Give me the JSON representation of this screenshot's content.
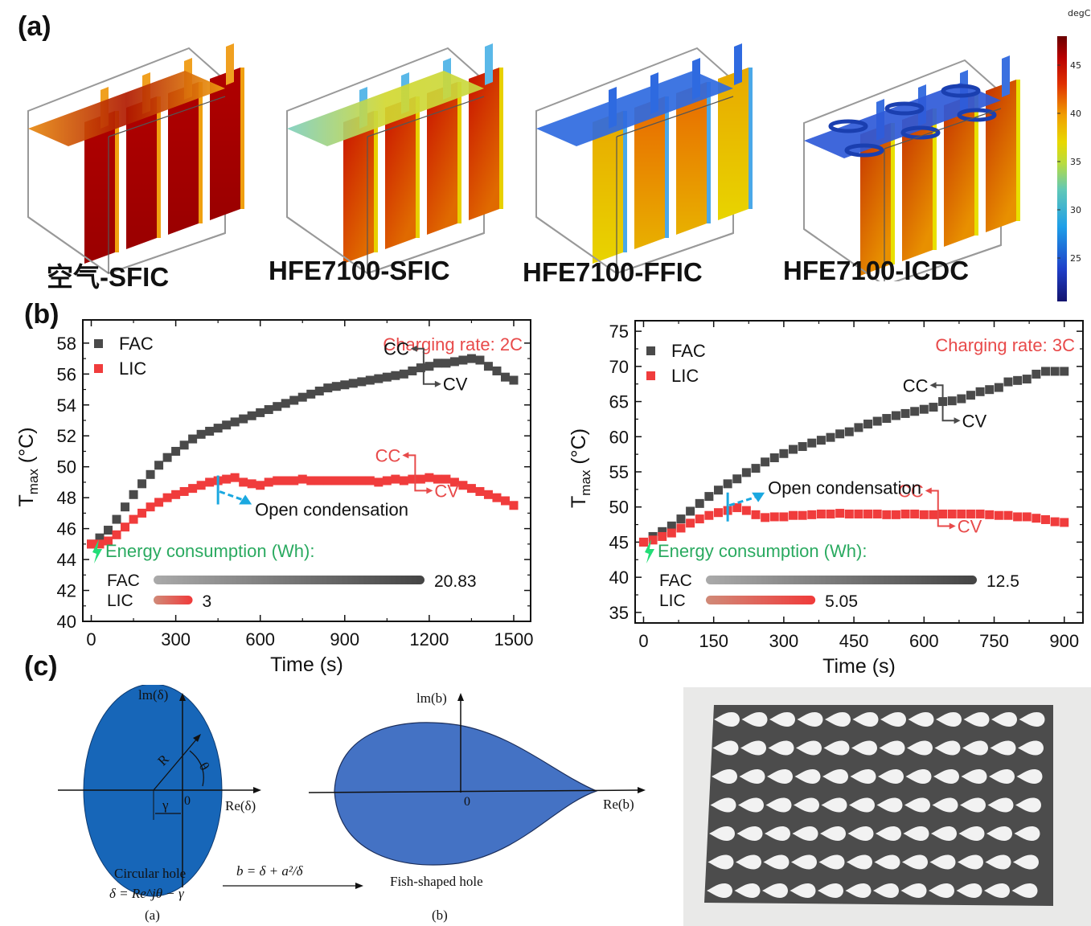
{
  "panels": {
    "a": {
      "label": "(a)",
      "renders": [
        {
          "caption": "空气-SFIC",
          "scheme": "hot"
        },
        {
          "caption": "HFE7100-SFIC",
          "scheme": "mixed"
        },
        {
          "caption": "HFE7100-FFIC",
          "scheme": "cool"
        },
        {
          "caption": "HFE7100-ICDC",
          "scheme": "coil"
        }
      ],
      "colorbar": {
        "unit": "degC",
        "ticks": [
          "45",
          "40",
          "35",
          "30",
          "25"
        ],
        "range": [
          20.5,
          48
        ]
      }
    },
    "b": {
      "label": "(b)"
    },
    "c": {
      "label": "(c)",
      "diagram": {
        "left_axis_y": "lm(δ)",
        "left_axis_x": "Re(δ)",
        "left_R": "R",
        "left_theta": "θ",
        "left_gamma": "γ",
        "left_origin": "0",
        "left_title": "Circular hole",
        "left_formula": "δ = Re^jθ − γ",
        "left_sub": "(a)",
        "transform": "b = δ + a²/δ",
        "right_axis_y": "lm(b)",
        "right_axis_x": "Re(b)",
        "right_origin": "0",
        "right_title": "Fish-shaped hole",
        "right_sub": "(b)"
      },
      "photo": {
        "rows": 7,
        "cols": 12,
        "description": "perforated plate with fish-shaped holes"
      }
    }
  },
  "chart_data": [
    {
      "type": "scatter",
      "title": "Charging rate: 2C",
      "xlabel": "Time (s)",
      "ylabel": "T_max (°C)",
      "xlim": [
        -30,
        1560
      ],
      "ylim": [
        40,
        59.5
      ],
      "xticks": [
        0,
        300,
        600,
        900,
        1200,
        1500
      ],
      "yticks": [
        40,
        42,
        44,
        46,
        48,
        50,
        52,
        54,
        56,
        58
      ],
      "legend": "top-left",
      "series": [
        {
          "name": "FAC",
          "color": "#4a4a4a",
          "x": [
            0,
            30,
            60,
            90,
            120,
            150,
            180,
            210,
            240,
            270,
            300,
            330,
            360,
            390,
            420,
            450,
            480,
            510,
            540,
            570,
            600,
            630,
            660,
            690,
            720,
            750,
            780,
            810,
            840,
            870,
            900,
            930,
            960,
            990,
            1020,
            1050,
            1080,
            1110,
            1140,
            1170,
            1200,
            1230,
            1260,
            1290,
            1320,
            1350,
            1380,
            1410,
            1440,
            1470,
            1500
          ],
          "y": [
            45.0,
            45.4,
            45.9,
            46.6,
            47.4,
            48.2,
            48.9,
            49.5,
            50.1,
            50.6,
            51.0,
            51.4,
            51.8,
            52.1,
            52.3,
            52.5,
            52.7,
            52.9,
            53.1,
            53.3,
            53.5,
            53.7,
            53.9,
            54.1,
            54.3,
            54.5,
            54.7,
            54.9,
            55.1,
            55.2,
            55.3,
            55.4,
            55.5,
            55.6,
            55.7,
            55.8,
            55.9,
            56.0,
            56.2,
            56.4,
            56.5,
            56.7,
            56.7,
            56.8,
            56.9,
            57.0,
            56.9,
            56.5,
            56.2,
            55.8,
            55.6
          ]
        },
        {
          "name": "LIC",
          "color": "#f03c3c",
          "x": [
            0,
            30,
            60,
            90,
            120,
            150,
            180,
            210,
            240,
            270,
            300,
            330,
            360,
            390,
            420,
            450,
            480,
            510,
            540,
            570,
            600,
            630,
            660,
            690,
            720,
            750,
            780,
            810,
            840,
            870,
            900,
            930,
            960,
            990,
            1020,
            1050,
            1080,
            1110,
            1140,
            1170,
            1200,
            1230,
            1260,
            1290,
            1320,
            1350,
            1380,
            1410,
            1440,
            1470,
            1500
          ],
          "y": [
            45.0,
            45.0,
            45.2,
            45.6,
            46.1,
            46.6,
            47.0,
            47.4,
            47.7,
            48.0,
            48.2,
            48.4,
            48.6,
            48.8,
            49.0,
            49.1,
            49.2,
            49.3,
            49.0,
            48.9,
            48.8,
            49.0,
            49.1,
            49.1,
            49.1,
            49.2,
            49.1,
            49.1,
            49.1,
            49.1,
            49.1,
            49.1,
            49.1,
            49.1,
            49.0,
            49.1,
            49.2,
            49.1,
            49.2,
            49.2,
            49.3,
            49.2,
            49.2,
            49.0,
            48.8,
            48.6,
            48.4,
            48.2,
            48.0,
            47.8,
            47.5
          ]
        }
      ],
      "annotations": {
        "fac_cc": "CC",
        "fac_cv": "CV",
        "fac_switch_x": 1180,
        "lic_cc": "CC",
        "lic_cv": "CV",
        "lic_switch_x": 1150,
        "open_condensation": "Open condensation",
        "open_condensation_x": 450
      },
      "energy": {
        "title": "Energy consumption (Wh):",
        "max_value": 20.83,
        "bars": [
          {
            "name": "FAC",
            "value": 20.83,
            "label": "20.83"
          },
          {
            "name": "LIC",
            "value": 3,
            "label": "3"
          }
        ]
      }
    },
    {
      "type": "scatter",
      "title": "Charging rate: 3C",
      "xlabel": "Time (s)",
      "ylabel": "T_max (°C)",
      "xlim": [
        -18,
        940
      ],
      "ylim": [
        33.5,
        76.5
      ],
      "xticks": [
        0,
        150,
        300,
        450,
        600,
        750,
        900
      ],
      "yticks": [
        35,
        40,
        45,
        50,
        55,
        60,
        65,
        70,
        75
      ],
      "legend": "top-left",
      "series": [
        {
          "name": "FAC",
          "color": "#4a4a4a",
          "x": [
            0,
            20,
            40,
            60,
            80,
            100,
            120,
            140,
            160,
            180,
            200,
            220,
            240,
            260,
            280,
            300,
            320,
            340,
            360,
            380,
            400,
            420,
            440,
            460,
            480,
            500,
            520,
            540,
            560,
            580,
            600,
            620,
            640,
            660,
            680,
            700,
            720,
            740,
            760,
            780,
            800,
            820,
            840,
            860,
            880,
            900
          ],
          "y": [
            45.0,
            45.8,
            46.5,
            47.3,
            48.3,
            49.4,
            50.5,
            51.5,
            52.4,
            53.3,
            54.0,
            54.9,
            55.5,
            56.4,
            57.0,
            57.6,
            58.2,
            58.6,
            59.1,
            59.5,
            59.9,
            60.4,
            60.7,
            61.3,
            61.8,
            62.2,
            62.6,
            63.0,
            63.3,
            63.6,
            63.9,
            64.2,
            65.0,
            65.1,
            65.4,
            65.9,
            66.4,
            66.7,
            67.0,
            67.8,
            68.0,
            68.2,
            68.9,
            69.3,
            69.3,
            69.3
          ]
        },
        {
          "name": "LIC",
          "color": "#f03c3c",
          "x": [
            0,
            20,
            40,
            60,
            80,
            100,
            120,
            140,
            160,
            180,
            200,
            220,
            240,
            260,
            280,
            300,
            320,
            340,
            360,
            380,
            400,
            420,
            440,
            460,
            480,
            500,
            520,
            540,
            560,
            580,
            600,
            620,
            640,
            660,
            680,
            700,
            720,
            740,
            760,
            780,
            800,
            820,
            840,
            860,
            880,
            900
          ],
          "y": [
            45.0,
            45.3,
            45.8,
            46.3,
            47.0,
            47.7,
            48.3,
            48.8,
            49.2,
            49.5,
            49.9,
            49.5,
            48.9,
            48.5,
            48.6,
            48.6,
            48.8,
            48.8,
            48.9,
            49.0,
            49.0,
            49.1,
            49.0,
            49.0,
            49.0,
            49.0,
            48.9,
            48.9,
            49.0,
            49.0,
            48.9,
            48.9,
            49.0,
            49.0,
            49.0,
            49.0,
            49.0,
            48.9,
            48.8,
            48.8,
            48.6,
            48.6,
            48.4,
            48.2,
            47.9,
            47.8
          ]
        }
      ],
      "annotations": {
        "fac_cc": "CC",
        "fac_cv": "CV",
        "fac_switch_x": 640,
        "lic_cc": "CC",
        "lic_cv": "CV",
        "lic_switch_x": 630,
        "open_condensation": "Open condensation",
        "open_condensation_x": 180
      },
      "energy": {
        "title": "Energy consumption (Wh):",
        "max_value": 12.5,
        "bars": [
          {
            "name": "FAC",
            "value": 12.5,
            "label": "12.5"
          },
          {
            "name": "LIC",
            "value": 5.05,
            "label": "5.05"
          }
        ]
      }
    }
  ]
}
